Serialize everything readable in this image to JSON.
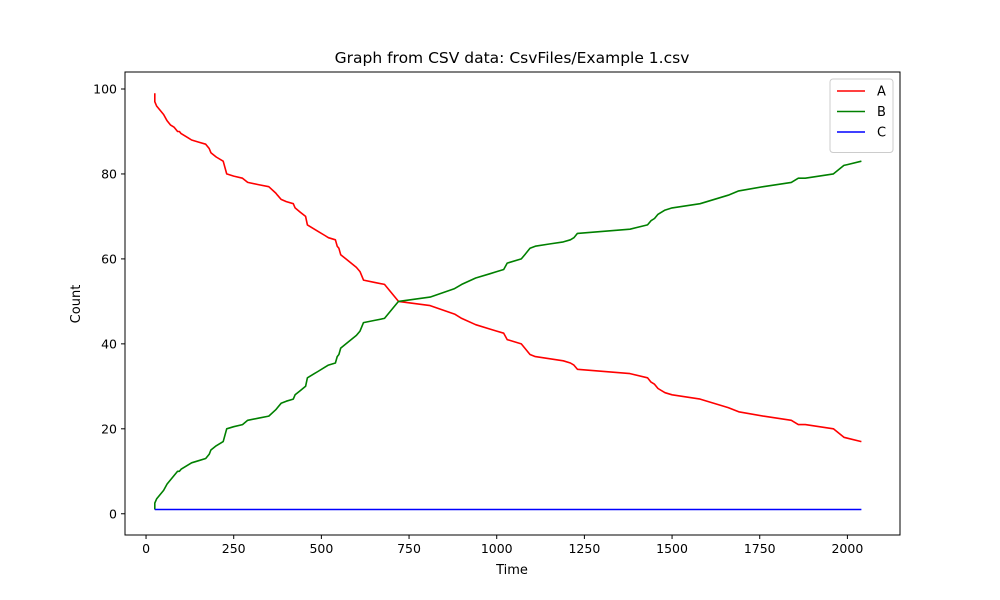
{
  "chart_data": {
    "type": "line",
    "title": "Graph from CSV data: CsvFiles/Example 1.csv",
    "xlabel": "Time",
    "ylabel": "Count",
    "xlim": [
      -60,
      2150
    ],
    "ylim": [
      -5,
      104
    ],
    "xticks": [
      0,
      250,
      500,
      750,
      1000,
      1250,
      1500,
      1750,
      2000
    ],
    "yticks": [
      0,
      20,
      40,
      60,
      80,
      100
    ],
    "legend_position": "top-right",
    "grid": false,
    "series": [
      {
        "name": "A",
        "color": "#ff0000",
        "x": [
          25,
          25,
          30,
          40,
          50,
          60,
          70,
          80,
          90,
          95,
          100,
          120,
          130,
          150,
          170,
          180,
          185,
          200,
          220,
          230,
          250,
          275,
          290,
          320,
          350,
          370,
          375,
          385,
          400,
          420,
          425,
          440,
          455,
          460,
          480,
          490,
          510,
          520,
          540,
          545,
          550,
          555,
          570,
          600,
          610,
          620,
          650,
          680,
          690,
          700,
          710,
          720,
          810,
          880,
          900,
          940,
          980,
          1000,
          1020,
          1030,
          1070,
          1080,
          1095,
          1110,
          1150,
          1190,
          1210,
          1220,
          1230,
          1380,
          1430,
          1440,
          1450,
          1460,
          1480,
          1500,
          1580,
          1660,
          1690,
          1760,
          1840,
          1860,
          1880,
          1960,
          1990,
          2000,
          2040
        ],
        "y": [
          99,
          97,
          96,
          95,
          94,
          92.5,
          91.5,
          91,
          90,
          90,
          89.5,
          88.5,
          88,
          87.5,
          87,
          86,
          85,
          84,
          83,
          80,
          79.5,
          79,
          78,
          77.5,
          77,
          75.5,
          75,
          74,
          73.5,
          73,
          72,
          71,
          70,
          68,
          67,
          66.5,
          65.5,
          65,
          64.5,
          63,
          62.5,
          61,
          60,
          58,
          57,
          55,
          54.5,
          54,
          53,
          52,
          51,
          50,
          49,
          47,
          46,
          44.5,
          43.5,
          43,
          42.5,
          41,
          40,
          39,
          37.5,
          37,
          36.5,
          36,
          35.5,
          35,
          34,
          33,
          32,
          31,
          30.5,
          29.5,
          28.5,
          28,
          27,
          25,
          24,
          23,
          22,
          21,
          21,
          20,
          18,
          17.8,
          17
        ]
      },
      {
        "name": "B",
        "color": "#008000",
        "x": [
          25,
          25,
          30,
          40,
          50,
          60,
          70,
          80,
          90,
          95,
          100,
          120,
          130,
          150,
          170,
          180,
          185,
          200,
          220,
          230,
          250,
          275,
          290,
          320,
          350,
          370,
          375,
          385,
          400,
          420,
          425,
          440,
          455,
          460,
          480,
          490,
          510,
          520,
          540,
          545,
          550,
          555,
          570,
          600,
          610,
          620,
          650,
          680,
          690,
          700,
          710,
          720,
          810,
          880,
          900,
          940,
          980,
          1000,
          1020,
          1030,
          1070,
          1080,
          1095,
          1110,
          1150,
          1190,
          1210,
          1220,
          1230,
          1380,
          1430,
          1440,
          1450,
          1460,
          1480,
          1500,
          1580,
          1660,
          1690,
          1760,
          1840,
          1860,
          1880,
          1960,
          1990,
          2000,
          2040
        ],
        "y": [
          1,
          2.5,
          3.5,
          4.5,
          5.5,
          7,
          8,
          9,
          10,
          10,
          10.5,
          11.5,
          12,
          12.5,
          13,
          14,
          15,
          16,
          17,
          20,
          20.5,
          21,
          22,
          22.5,
          23,
          24.5,
          25,
          26,
          26.5,
          27,
          28,
          29,
          30,
          32,
          33,
          33.5,
          34.5,
          35,
          35.5,
          37,
          37.5,
          39,
          40,
          42,
          43,
          45,
          45.5,
          46,
          47,
          48,
          49,
          50,
          51,
          53,
          54,
          55.5,
          56.5,
          57,
          57.5,
          59,
          60,
          61,
          62.5,
          63,
          63.5,
          64,
          64.5,
          65,
          66,
          67,
          68,
          69,
          69.5,
          70.5,
          71.5,
          72,
          73,
          75,
          76,
          77,
          78,
          79,
          79,
          80,
          82,
          82.2,
          83
        ]
      },
      {
        "name": "C",
        "color": "#0000ff",
        "x": [
          25,
          2040
        ],
        "y": [
          1,
          1
        ]
      }
    ]
  }
}
